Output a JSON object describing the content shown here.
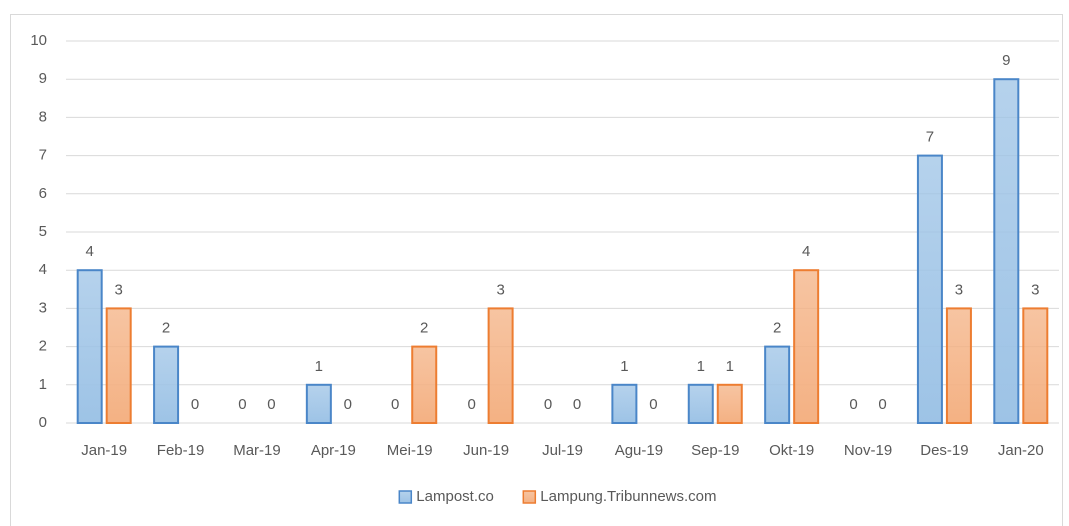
{
  "chart_data": {
    "type": "bar",
    "categories": [
      "Jan-19",
      "Feb-19",
      "Mar-19",
      "Apr-19",
      "Mei-19",
      "Jun-19",
      "Jul-19",
      "Agu-19",
      "Sep-19",
      "Okt-19",
      "Nov-19",
      "Des-19",
      "Jan-20"
    ],
    "series": [
      {
        "name": "Lampost.co",
        "color": "#9dc3e6",
        "edgecolor": "#4a86c8",
        "values": [
          4,
          2,
          0,
          1,
          0,
          0,
          0,
          1,
          1,
          2,
          0,
          7,
          9
        ]
      },
      {
        "name": "Lampung.Tribunnews.com",
        "color": "#f4b183",
        "edgecolor": "#ed7d31",
        "values": [
          3,
          0,
          0,
          0,
          2,
          3,
          0,
          0,
          1,
          4,
          0,
          3,
          3
        ]
      }
    ],
    "ylim": [
      0,
      10
    ],
    "yticks": [
      0,
      1,
      2,
      3,
      4,
      5,
      6,
      7,
      8,
      9,
      10
    ],
    "grid": true,
    "legend": "bottom"
  }
}
